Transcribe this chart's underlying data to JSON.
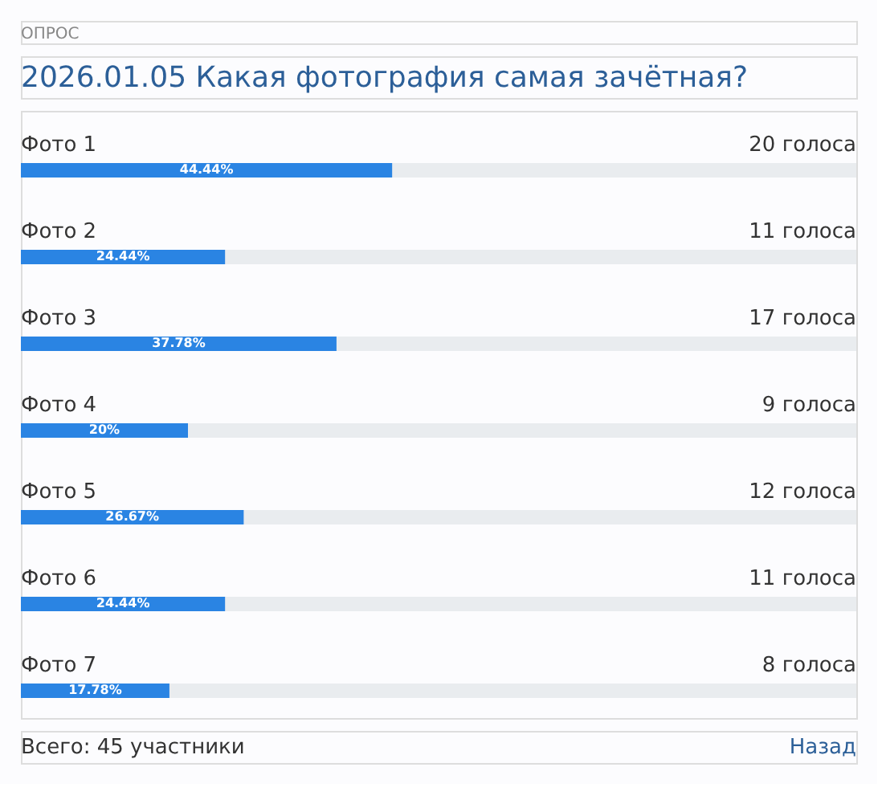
{
  "chart_data": {
    "type": "bar",
    "orientation": "horizontal",
    "title": "2026.01.05 Какая фотография самая зачётная?",
    "subtitle": "ОПРОС",
    "categories": [
      "Фото 1",
      "Фото 2",
      "Фото 3",
      "Фото 4",
      "Фото 5",
      "Фото 6",
      "Фото 7"
    ],
    "values": [
      44.44,
      24.44,
      37.78,
      20,
      26.67,
      24.44,
      17.78
    ],
    "value_labels": [
      "44.44%",
      "24.44%",
      "37.78%",
      "20%",
      "26.67%",
      "24.44%",
      "17.78%"
    ],
    "color": "#2a84e3",
    "xlim": [
      0,
      100
    ],
    "tick_labels": false,
    "annotations": [
      "20 голоса",
      "11 голоса",
      "17 голоса",
      "9 голоса",
      "12 голоса",
      "11 голоса",
      "8 голоса",
      "Всего: 45 участники",
      "Назад"
    ]
  }
}
